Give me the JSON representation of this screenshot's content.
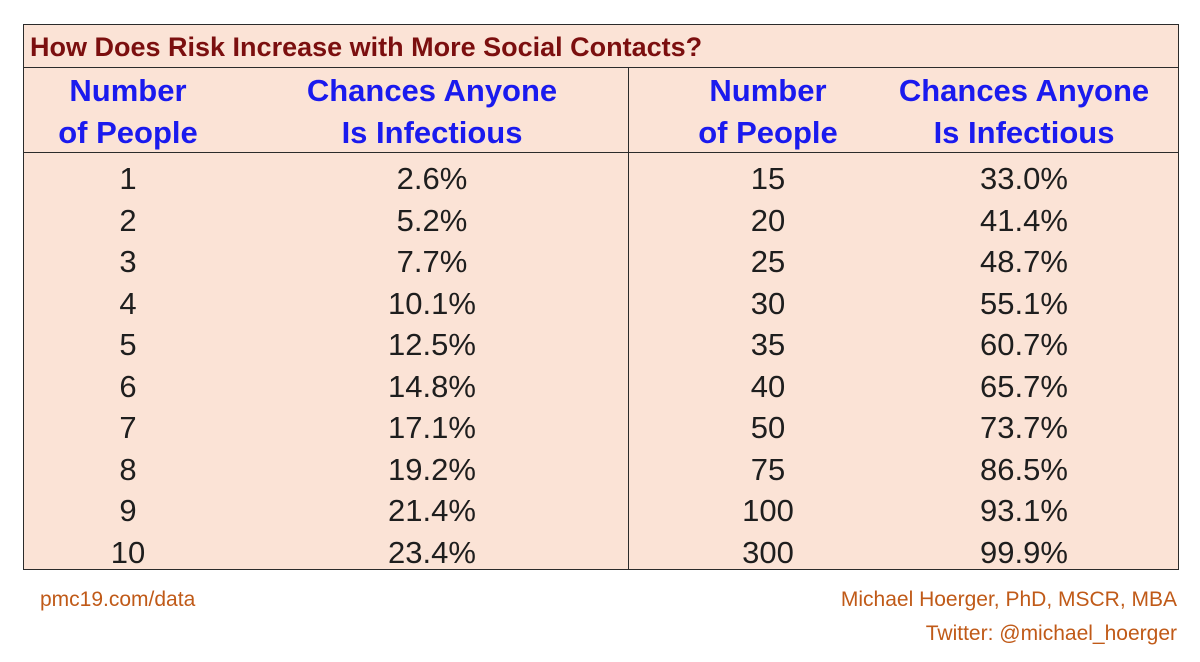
{
  "chart_data": {
    "type": "table",
    "title": "How Does Risk Increase with More Social Contacts?",
    "columns": [
      "Number of People",
      "Chances Anyone Is Infectious",
      "Number of People",
      "Chances Anyone Is Infectious"
    ],
    "header_lines": [
      [
        "Number",
        "of People"
      ],
      [
        "Chances Anyone",
        "Is Infectious"
      ],
      [
        "Number",
        "of People"
      ],
      [
        "Chances Anyone",
        "Is Infectious"
      ]
    ],
    "left_rows": [
      [
        "1",
        "2.6%"
      ],
      [
        "2",
        "5.2%"
      ],
      [
        "3",
        "7.7%"
      ],
      [
        "4",
        "10.1%"
      ],
      [
        "5",
        "12.5%"
      ],
      [
        "6",
        "14.8%"
      ],
      [
        "7",
        "17.1%"
      ],
      [
        "8",
        "19.2%"
      ],
      [
        "9",
        "21.4%"
      ],
      [
        "10",
        "23.4%"
      ]
    ],
    "right_rows": [
      [
        "15",
        "33.0%"
      ],
      [
        "20",
        "41.4%"
      ],
      [
        "25",
        "48.7%"
      ],
      [
        "30",
        "55.1%"
      ],
      [
        "35",
        "60.7%"
      ],
      [
        "40",
        "65.7%"
      ],
      [
        "50",
        "73.7%"
      ],
      [
        "75",
        "86.5%"
      ],
      [
        "100",
        "93.1%"
      ],
      [
        "300",
        "99.9%"
      ]
    ]
  },
  "footer": {
    "source": "pmc19.com/data",
    "author": "Michael Hoerger, PhD, MSCR, MBA",
    "twitter": "Twitter: @michael_hoerger"
  },
  "colors": {
    "title": "#7b0f0f",
    "header": "#1a1aee",
    "background": "#fbe3d6",
    "footer": "#c05a18"
  }
}
